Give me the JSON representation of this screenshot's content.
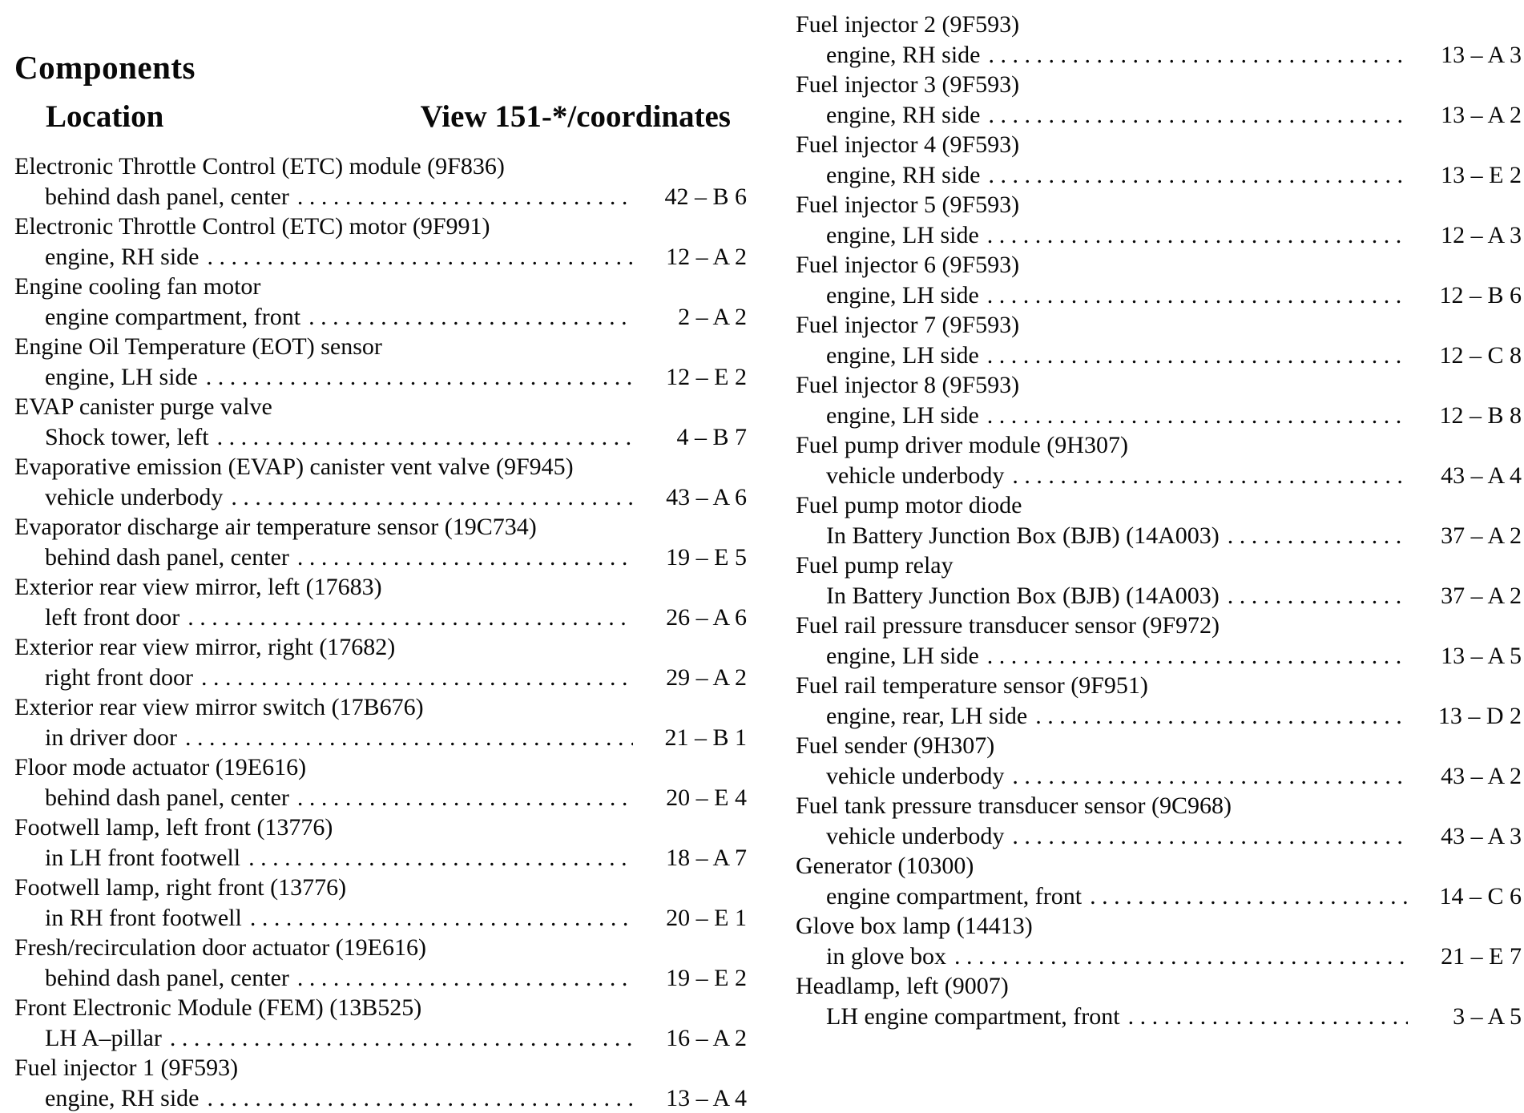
{
  "header": {
    "title": "Components",
    "location_label": "Location",
    "view_label": "View 151-*/coordinates"
  },
  "left_entries": [
    {
      "name": "Electronic Throttle Control (ETC) module (9F836)",
      "location": "behind dash panel, center",
      "coord": "42 – B 6"
    },
    {
      "name": "Electronic Throttle Control (ETC) motor (9F991)",
      "location": "engine, RH side",
      "coord": "12 – A 2"
    },
    {
      "name": "Engine cooling fan motor",
      "location": "engine compartment, front",
      "coord": "2 – A 2"
    },
    {
      "name": "Engine Oil Temperature (EOT) sensor",
      "location": "engine, LH side",
      "coord": "12 – E 2"
    },
    {
      "name": "EVAP canister purge valve",
      "location": "Shock tower, left",
      "coord": "4 – B 7"
    },
    {
      "name": "Evaporative emission (EVAP) canister vent valve (9F945)",
      "location": "vehicle underbody",
      "coord": "43 – A 6"
    },
    {
      "name": "Evaporator discharge air temperature sensor (19C734)",
      "location": "behind dash panel, center",
      "coord": "19 – E 5"
    },
    {
      "name": "Exterior rear view mirror, left (17683)",
      "location": "left front door",
      "coord": "26 – A 6"
    },
    {
      "name": "Exterior rear view mirror, right (17682)",
      "location": "right front door",
      "coord": "29 – A 2"
    },
    {
      "name": "Exterior rear view mirror switch (17B676)",
      "location": "in driver door",
      "coord": "21 – B 1"
    },
    {
      "name": "Floor mode actuator (19E616)",
      "location": "behind dash panel, center",
      "coord": "20 – E 4"
    },
    {
      "name": "Footwell lamp, left front (13776)",
      "location": "in LH front footwell",
      "coord": "18 – A 7"
    },
    {
      "name": "Footwell lamp, right front (13776)",
      "location": "in RH front footwell",
      "coord": "20 – E 1"
    },
    {
      "name": "Fresh/recirculation door actuator (19E616)",
      "location": "behind dash panel, center",
      "coord": "19 – E 2"
    },
    {
      "name": "Front Electronic Module (FEM) (13B525)",
      "location": "LH A–pillar",
      "coord": "16 – A 2"
    },
    {
      "name": "Fuel injector 1 (9F593)",
      "location": "engine, RH side",
      "coord": "13 – A 4"
    }
  ],
  "right_entries": [
    {
      "name": "Fuel injector 2 (9F593)",
      "location": "engine, RH side",
      "coord": "13 – A 3"
    },
    {
      "name": "Fuel injector 3 (9F593)",
      "location": "engine, RH side",
      "coord": "13 – A 2"
    },
    {
      "name": "Fuel injector 4 (9F593)",
      "location": "engine, RH side",
      "coord": "13 – E 2"
    },
    {
      "name": "Fuel injector 5 (9F593)",
      "location": "engine, LH side",
      "coord": "12 – A 3"
    },
    {
      "name": "Fuel injector 6 (9F593)",
      "location": "engine, LH side",
      "coord": "12 – B 6"
    },
    {
      "name": "Fuel injector 7 (9F593)",
      "location": "engine, LH side",
      "coord": "12 – C 8"
    },
    {
      "name": "Fuel injector 8 (9F593)",
      "location": "engine, LH side",
      "coord": "12 – B 8"
    },
    {
      "name": "Fuel pump driver module (9H307)",
      "location": "vehicle underbody",
      "coord": "43 – A 4"
    },
    {
      "name": "Fuel pump motor diode",
      "location": "In Battery Junction Box (BJB) (14A003)",
      "coord": "37 – A 2"
    },
    {
      "name": "Fuel pump relay",
      "location": "In Battery Junction Box (BJB) (14A003)",
      "coord": "37 – A 2"
    },
    {
      "name": "Fuel rail pressure transducer sensor (9F972)",
      "location": "engine, LH side",
      "coord": "13 – A 5"
    },
    {
      "name": "Fuel rail temperature sensor (9F951)",
      "location": "engine, rear, LH side",
      "coord": "13 – D 2"
    },
    {
      "name": "Fuel sender (9H307)",
      "location": "vehicle underbody",
      "coord": "43 – A 2"
    },
    {
      "name": "Fuel tank pressure transducer sensor (9C968)",
      "location": "vehicle underbody",
      "coord": "43 – A 3"
    },
    {
      "name": "Generator (10300)",
      "location": "engine compartment, front",
      "coord": "14 – C 6"
    },
    {
      "name": "Glove box lamp (14413)",
      "location": "in glove box",
      "coord": "21 – E 7"
    },
    {
      "name": "Headlamp, left (9007)",
      "location": "LH engine compartment, front",
      "coord": "3 – A 5"
    }
  ]
}
